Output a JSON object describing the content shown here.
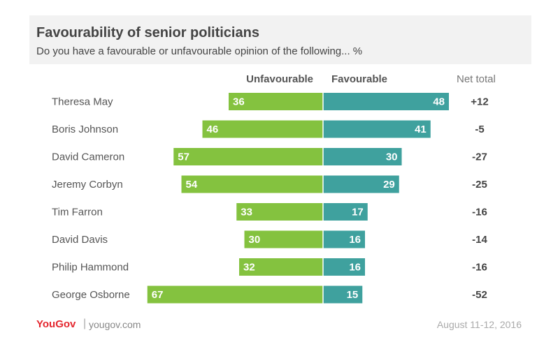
{
  "chart_data": {
    "type": "bar",
    "title": "Favourability of senior politicians",
    "subtitle": "Do you have a favourable or unfavourable opinion of the following... %",
    "categories": [
      "Theresa May",
      "Boris Johnson",
      "David Cameron",
      "Jeremy Corbyn",
      "Tim Farron",
      "David Davis",
      "Philip Hammond",
      "George Osborne"
    ],
    "series": [
      {
        "name": "Unfavourable",
        "color": "#84c23f",
        "values": [
          36,
          46,
          57,
          54,
          33,
          30,
          32,
          67
        ]
      },
      {
        "name": "Favourable",
        "color": "#3fa19e",
        "values": [
          48,
          41,
          30,
          29,
          17,
          16,
          16,
          15
        ]
      }
    ],
    "net_total_label": "Net total",
    "net_totals": [
      "+12",
      "-5",
      "-27",
      "-25",
      "-16",
      "-14",
      "-16",
      "-52"
    ],
    "legend": "top"
  },
  "footer": {
    "brand_you": "You",
    "brand_gov": "Gov",
    "separator": "|",
    "site": "yougov.com",
    "date": "August 11-12, 2016"
  }
}
